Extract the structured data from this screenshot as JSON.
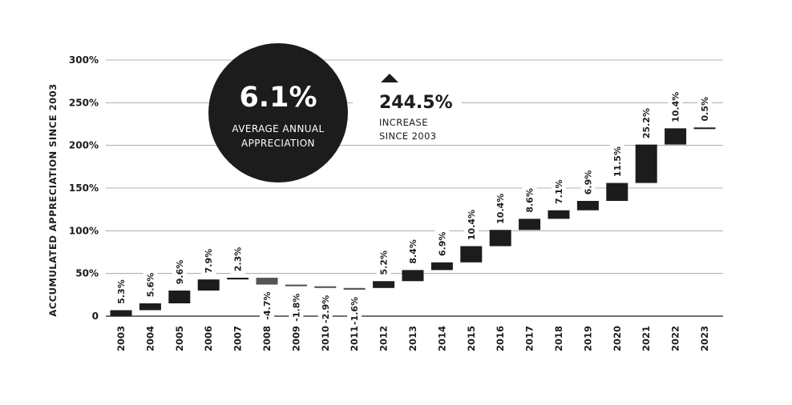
{
  "colors": {
    "positive": "#1c1c1c",
    "negative": "#555555",
    "grid": "#9a9a9a",
    "circle": "#1c1c1c"
  },
  "callout_avg": {
    "value": "6.1%",
    "line1": "AVERAGE ANNUAL",
    "line2": "APPRECIATION"
  },
  "callout_total": {
    "icon": "triangle-up-icon",
    "value": "244.5%",
    "line1": "INCREASE",
    "line2": "SINCE 2003"
  },
  "chart_data": {
    "type": "bar",
    "subtype": "waterfall",
    "ylabel": "ACCUMULATED APPRECIATION SINCE 2003",
    "xlabel": "",
    "ylim": [
      0,
      300
    ],
    "yticks": [
      "0",
      "50%",
      "100%",
      "150%",
      "200%",
      "250%",
      "300%"
    ],
    "ytick_values": [
      0,
      50,
      100,
      150,
      200,
      250,
      300
    ],
    "grid": "horizontal",
    "categories": [
      "2003",
      "2004",
      "2005",
      "2006",
      "2007",
      "2008",
      "2009",
      "2010",
      "2011",
      "2012",
      "2013",
      "2014",
      "2015",
      "2016",
      "2017",
      "2018",
      "2019",
      "2020",
      "2021",
      "2022",
      "2023"
    ],
    "labels": [
      "5.3%",
      "5.6%",
      "9.6%",
      "7.9%",
      "2.3%",
      "-4.7%",
      "-1.8%",
      "-2.9%",
      "-1.6%",
      "5.2%",
      "8.4%",
      "6.9%",
      "10.4%",
      "10.4%",
      "8.6%",
      "7.1%",
      "6.9%",
      "11.5%",
      "25.2%",
      "10.4%",
      "0.5%"
    ],
    "bar_start": [
      0,
      7,
      15,
      30,
      43,
      45,
      37,
      35,
      33,
      33,
      41,
      54,
      63,
      82,
      101,
      114,
      124,
      135,
      156,
      201,
      220
    ],
    "bar_end": [
      7,
      15,
      30,
      43,
      45,
      37,
      35,
      33,
      31,
      41,
      54,
      63,
      82,
      101,
      114,
      124,
      135,
      156,
      201,
      220,
      221
    ]
  }
}
